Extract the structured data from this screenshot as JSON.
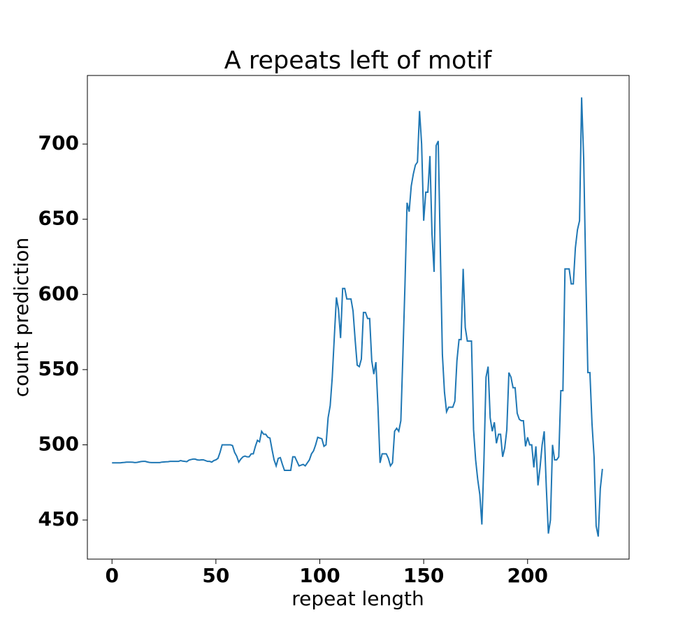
{
  "chart_data": {
    "type": "line",
    "title": "A repeats left of motif",
    "x_label": "repeat length",
    "y_label": "count prediction",
    "xlim": [
      -11.85,
      248.85
    ],
    "ylim": [
      424,
      745.6
    ],
    "xticks": [
      0,
      50,
      100,
      150,
      200
    ],
    "yticks": [
      450,
      500,
      550,
      600,
      650,
      700
    ],
    "x": [
      0,
      1,
      2,
      3,
      4,
      5,
      6,
      7,
      8,
      9,
      10,
      11,
      12,
      13,
      14,
      15,
      16,
      17,
      18,
      19,
      20,
      21,
      22,
      23,
      24,
      25,
      26,
      27,
      28,
      29,
      30,
      31,
      32,
      33,
      34,
      35,
      36,
      37,
      38,
      39,
      40,
      41,
      42,
      43,
      44,
      45,
      46,
      47,
      48,
      49,
      50,
      51,
      52,
      53,
      54,
      55,
      56,
      57,
      58,
      59,
      60,
      61,
      62,
      63,
      64,
      65,
      66,
      67,
      68,
      69,
      70,
      71,
      72,
      73,
      74,
      75,
      76,
      77,
      78,
      79,
      80,
      81,
      82,
      83,
      84,
      85,
      86,
      87,
      88,
      89,
      90,
      91,
      92,
      93,
      94,
      95,
      96,
      97,
      98,
      99,
      100,
      101,
      102,
      103,
      104,
      105,
      106,
      107,
      108,
      109,
      110,
      111,
      112,
      113,
      114,
      115,
      116,
      117,
      118,
      119,
      120,
      121,
      122,
      123,
      124,
      125,
      126,
      127,
      128,
      129,
      130,
      131,
      132,
      133,
      134,
      135,
      136,
      137,
      138,
      139,
      140,
      141,
      142,
      143,
      144,
      145,
      146,
      147,
      148,
      149,
      150,
      151,
      152,
      153,
      154,
      155,
      156,
      157,
      158,
      159,
      160,
      161,
      162,
      163,
      164,
      165,
      166,
      167,
      168,
      169,
      170,
      171,
      172,
      173,
      174,
      175,
      176,
      177,
      178,
      179,
      180,
      181,
      182,
      183,
      184,
      185,
      186,
      187,
      188,
      189,
      190,
      191,
      192,
      193,
      194,
      195,
      196,
      197,
      198,
      199,
      200,
      201,
      202,
      203,
      204,
      205,
      206,
      207,
      208,
      209,
      210,
      211,
      212,
      213,
      214,
      215,
      216,
      217,
      218,
      219,
      220,
      221,
      222,
      223,
      224,
      225,
      226,
      227,
      228,
      229,
      230,
      231,
      232,
      233,
      234,
      235,
      236
    ],
    "series": [
      {
        "color": "#1f77b4",
        "values": [
          488,
          488,
          488,
          488,
          488,
          488.2,
          488.3,
          488.5,
          488.5,
          488.5,
          488.4,
          488.2,
          488.3,
          488.6,
          488.9,
          489,
          489,
          488.6,
          488.3,
          488.2,
          488.2,
          488.2,
          488.2,
          488.2,
          488.5,
          488.6,
          488.7,
          488.8,
          489,
          489,
          489,
          489,
          489,
          489.5,
          489.2,
          489,
          488.8,
          489.8,
          490.2,
          490.5,
          490.5,
          490,
          489.8,
          490,
          490,
          489.5,
          489,
          489,
          488.5,
          489.5,
          490,
          491,
          495,
          500,
          500,
          500,
          500,
          500,
          499.5,
          495,
          492.5,
          488.5,
          490.5,
          492,
          492.5,
          492,
          492,
          494,
          494,
          499,
          503,
          502,
          509,
          507,
          507,
          505,
          504.5,
          497,
          490,
          486,
          491,
          491.5,
          487,
          483,
          483,
          483,
          483,
          492,
          492,
          489,
          486,
          486.5,
          487,
          486,
          488,
          490,
          494,
          496,
          500,
          505,
          504.5,
          504,
          499,
          500,
          518,
          526,
          545,
          572,
          598,
          590,
          571,
          604,
          604,
          597,
          597,
          597,
          589,
          570,
          553,
          552,
          557,
          588,
          588,
          584,
          584,
          556,
          547,
          555,
          525,
          488,
          494,
          494,
          494,
          491,
          486,
          488,
          509,
          511,
          509,
          516,
          560,
          607,
          661,
          655,
          672,
          680,
          686,
          688,
          722,
          700,
          649,
          668,
          668,
          692,
          640,
          615,
          699,
          702,
          630,
          560,
          535,
          522,
          525,
          525,
          525,
          529,
          556,
          570,
          570,
          617,
          578,
          569,
          569,
          569,
          510,
          490,
          477,
          467,
          447,
          490,
          545,
          552,
          518,
          509,
          515,
          501,
          507,
          507,
          492,
          498,
          510,
          548,
          545,
          538,
          538,
          521,
          517,
          516,
          516,
          499,
          505,
          500,
          500,
          485,
          499,
          473,
          485,
          500,
          509,
          472,
          441,
          450,
          500,
          490,
          490,
          492,
          536,
          536,
          617,
          617,
          617,
          607,
          607,
          631,
          643,
          649,
          731,
          690,
          614,
          548,
          548,
          514,
          492,
          446,
          439,
          471,
          484
        ]
      }
    ]
  }
}
